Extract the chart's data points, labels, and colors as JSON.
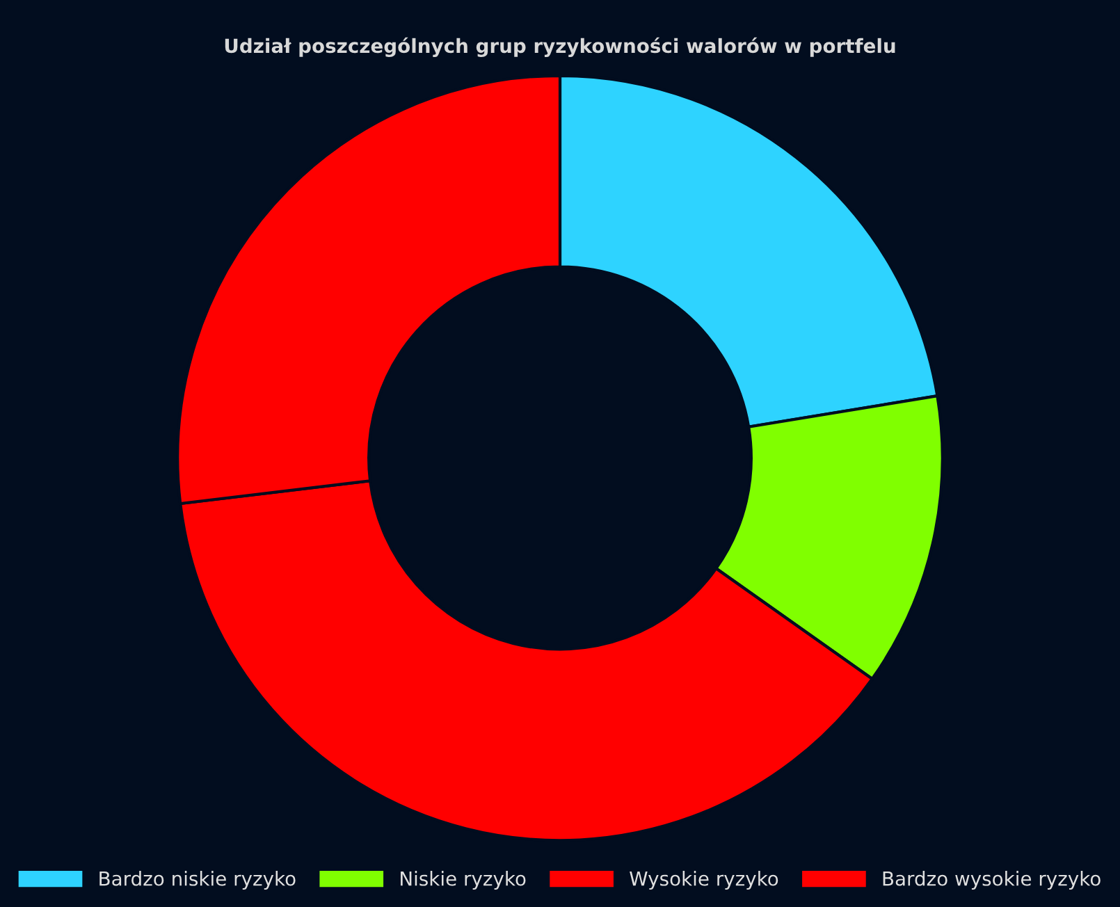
{
  "chart_data": {
    "type": "donut",
    "title": "Udział poszczególnych grup ryzykowności walorów w portfelu",
    "categories": [
      "Bardzo niskie ryzyko",
      "Niskie ryzyko",
      "Wysokie ryzyko",
      "Bardzo wysokie ryzyko"
    ],
    "values": [
      22.4,
      12.4,
      38.3,
      26.9
    ],
    "colors": [
      "#2ed3ff",
      "#80ff00",
      "#ff0000",
      "#ff0000"
    ],
    "legend": "bottom"
  }
}
